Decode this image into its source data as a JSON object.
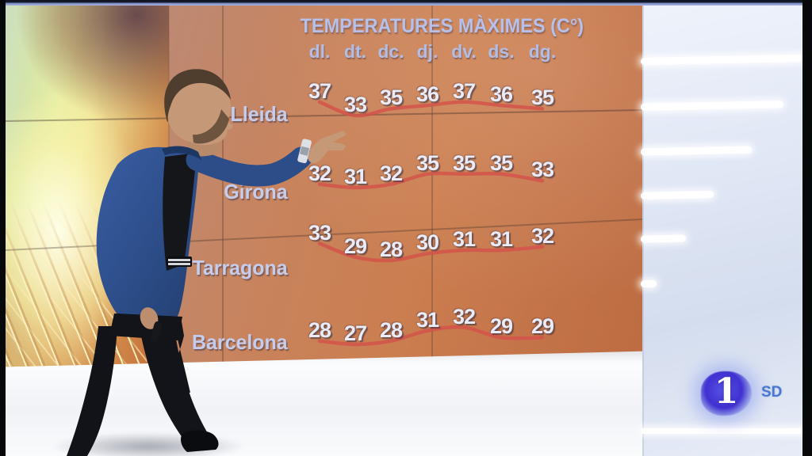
{
  "chart_data": {
    "type": "table",
    "title": "TEMPERATURES MÀXIMES (C°)",
    "columns": [
      "dl.",
      "dt.",
      "dc.",
      "dj.",
      "dv.",
      "ds.",
      "dg."
    ],
    "rows": [
      {
        "city": "Lleida",
        "values": [
          37,
          33,
          35,
          36,
          37,
          36,
          35
        ]
      },
      {
        "city": "Girona",
        "values": [
          32,
          31,
          32,
          35,
          35,
          35,
          33
        ]
      },
      {
        "city": "Tarragona",
        "values": [
          33,
          29,
          28,
          30,
          31,
          31,
          32
        ]
      },
      {
        "city": "Barcelona",
        "values": [
          28,
          27,
          28,
          31,
          32,
          29,
          29
        ]
      }
    ],
    "annotation": "red trend line traced under each row of values",
    "layout_hints": {
      "legend": "none",
      "background": "orange video-wall panel"
    }
  },
  "channel_badge": {
    "number": "1",
    "quality": "SD"
  },
  "colors": {
    "board_top": "#bd8973",
    "board_bottom": "#bd6c42",
    "title_text": "#b5c1ea",
    "value_text": "#e9ebf7",
    "trend_line": "#d4544a",
    "logo_core": "#4030d0",
    "sd_text": "#4a77cf"
  }
}
